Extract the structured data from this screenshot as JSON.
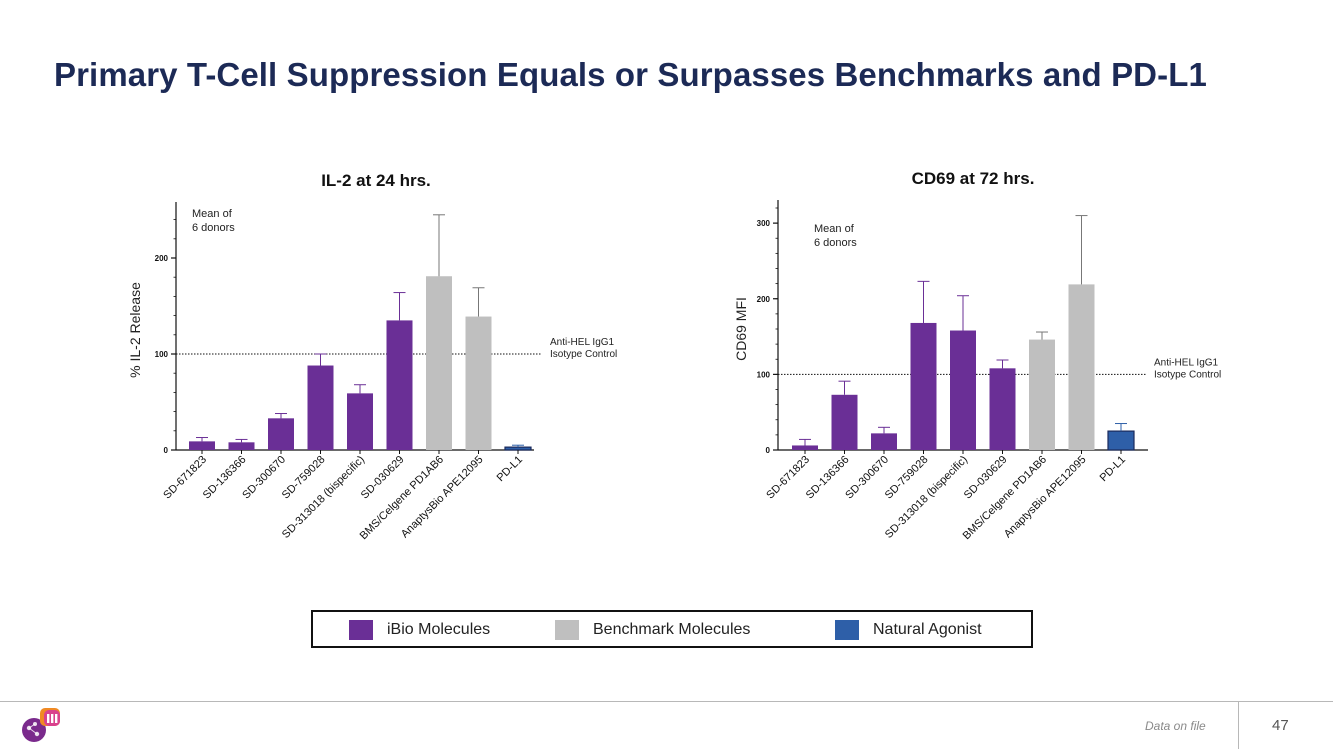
{
  "slide": {
    "title": "Primary T-Cell Suppression Equals or Surpasses Benchmarks and PD-L1"
  },
  "colors": {
    "ibio": "#6a2f96",
    "benchmark": "#bfbfbf",
    "natural": "#2e5fa8",
    "title": "#1c2a56"
  },
  "chart_data": [
    {
      "type": "bar",
      "title": "IL-2 at 24 hrs.",
      "ylabel": "% IL-2 Release",
      "xlabel": "",
      "ylim": [
        0,
        250
      ],
      "yticks": [
        0,
        100,
        200
      ],
      "categories": [
        "SD-671823",
        "SD-136366",
        "SD-300670",
        "SD-759028",
        "SD-313018 (bispecific)",
        "SD-030629",
        "BMS/Celgene PD1AB6",
        "AnaptysBio APE12095",
        "PD-L1"
      ],
      "groups": [
        "ibio",
        "ibio",
        "ibio",
        "ibio",
        "ibio",
        "ibio",
        "benchmark",
        "benchmark",
        "natural"
      ],
      "values": [
        9,
        8,
        33,
        88,
        59,
        135,
        181,
        139,
        3
      ],
      "errors": [
        4,
        3,
        5,
        12,
        9,
        29,
        64,
        30,
        2
      ],
      "reference": {
        "value": 100,
        "label_line1": "Anti-HEL IgG1",
        "label_line2": "Isotype Control"
      },
      "note_line1": "Mean of",
      "note_line2": "6 donors",
      "grid": false
    },
    {
      "type": "bar",
      "title": "CD69 at 72 hrs.",
      "ylabel": "CD69 MFI",
      "xlabel": "",
      "ylim": [
        0,
        320
      ],
      "yticks": [
        0,
        100,
        200,
        300
      ],
      "categories": [
        "SD-671823",
        "SD-136366",
        "SD-300670",
        "SD-759028",
        "SD-313018 (bispecific)",
        "SD-030629",
        "BMS/Celgene PD1AB6",
        "AnaptysBio APE12095",
        "PD-L1"
      ],
      "groups": [
        "ibio",
        "ibio",
        "ibio",
        "ibio",
        "ibio",
        "ibio",
        "benchmark",
        "benchmark",
        "natural"
      ],
      "values": [
        6,
        73,
        22,
        168,
        158,
        108,
        146,
        219,
        25
      ],
      "errors": [
        8,
        18,
        8,
        55,
        46,
        11,
        10,
        91,
        10
      ],
      "reference": {
        "value": 100,
        "label_line1": "Anti-HEL IgG1",
        "label_line2": "Isotype Control"
      },
      "note_line1": "Mean of",
      "note_line2": "6 donors",
      "grid": false
    }
  ],
  "legend": [
    {
      "key": "ibio",
      "label": "iBio Molecules"
    },
    {
      "key": "benchmark",
      "label": "Benchmark Molecules"
    },
    {
      "key": "natural",
      "label": "Natural Agonist"
    }
  ],
  "footer": {
    "note": "Data on file",
    "page_number": "47",
    "logo_icon": "ibio-logo-icon"
  }
}
